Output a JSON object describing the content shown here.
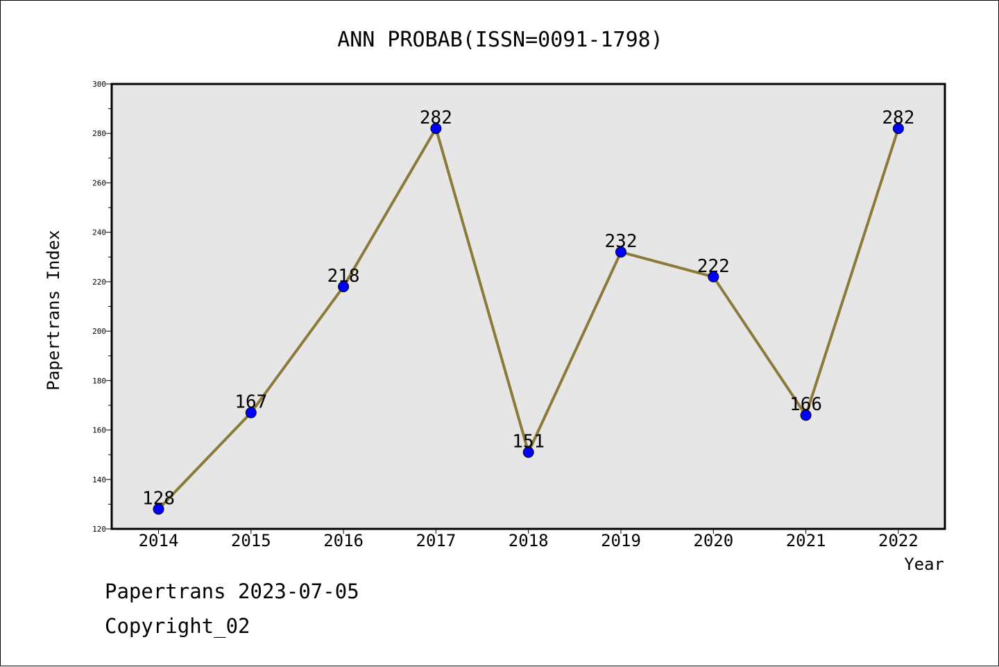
{
  "chart_data": {
    "type": "line",
    "title": "ANN PROBAB(ISSN=0091-1798)",
    "xlabel": "Year",
    "ylabel": "Papertrans Index",
    "categories": [
      "2014",
      "2015",
      "2016",
      "2017",
      "2018",
      "2019",
      "2020",
      "2021",
      "2022"
    ],
    "values": [
      128,
      167,
      218,
      282,
      151,
      232,
      222,
      166,
      282
    ],
    "data_labels": [
      "128",
      "167",
      "218",
      "282",
      "151",
      "232",
      "222",
      "166",
      "282"
    ],
    "ylim": [
      120,
      300
    ],
    "yticks": [
      120,
      140,
      160,
      180,
      200,
      220,
      240,
      260,
      280,
      300
    ],
    "ytick_labels": [
      "120",
      "140",
      "160",
      "180",
      "200",
      "220",
      "240",
      "260",
      "280",
      "300"
    ],
    "grid": false,
    "colors": {
      "line": "#8B7A3A",
      "marker": "#0000FF",
      "plot_background": "#E6E6E6",
      "axes": "#000000"
    }
  },
  "footer": {
    "line1": "Papertrans 2023-07-05",
    "line2": "Copyright_02"
  }
}
